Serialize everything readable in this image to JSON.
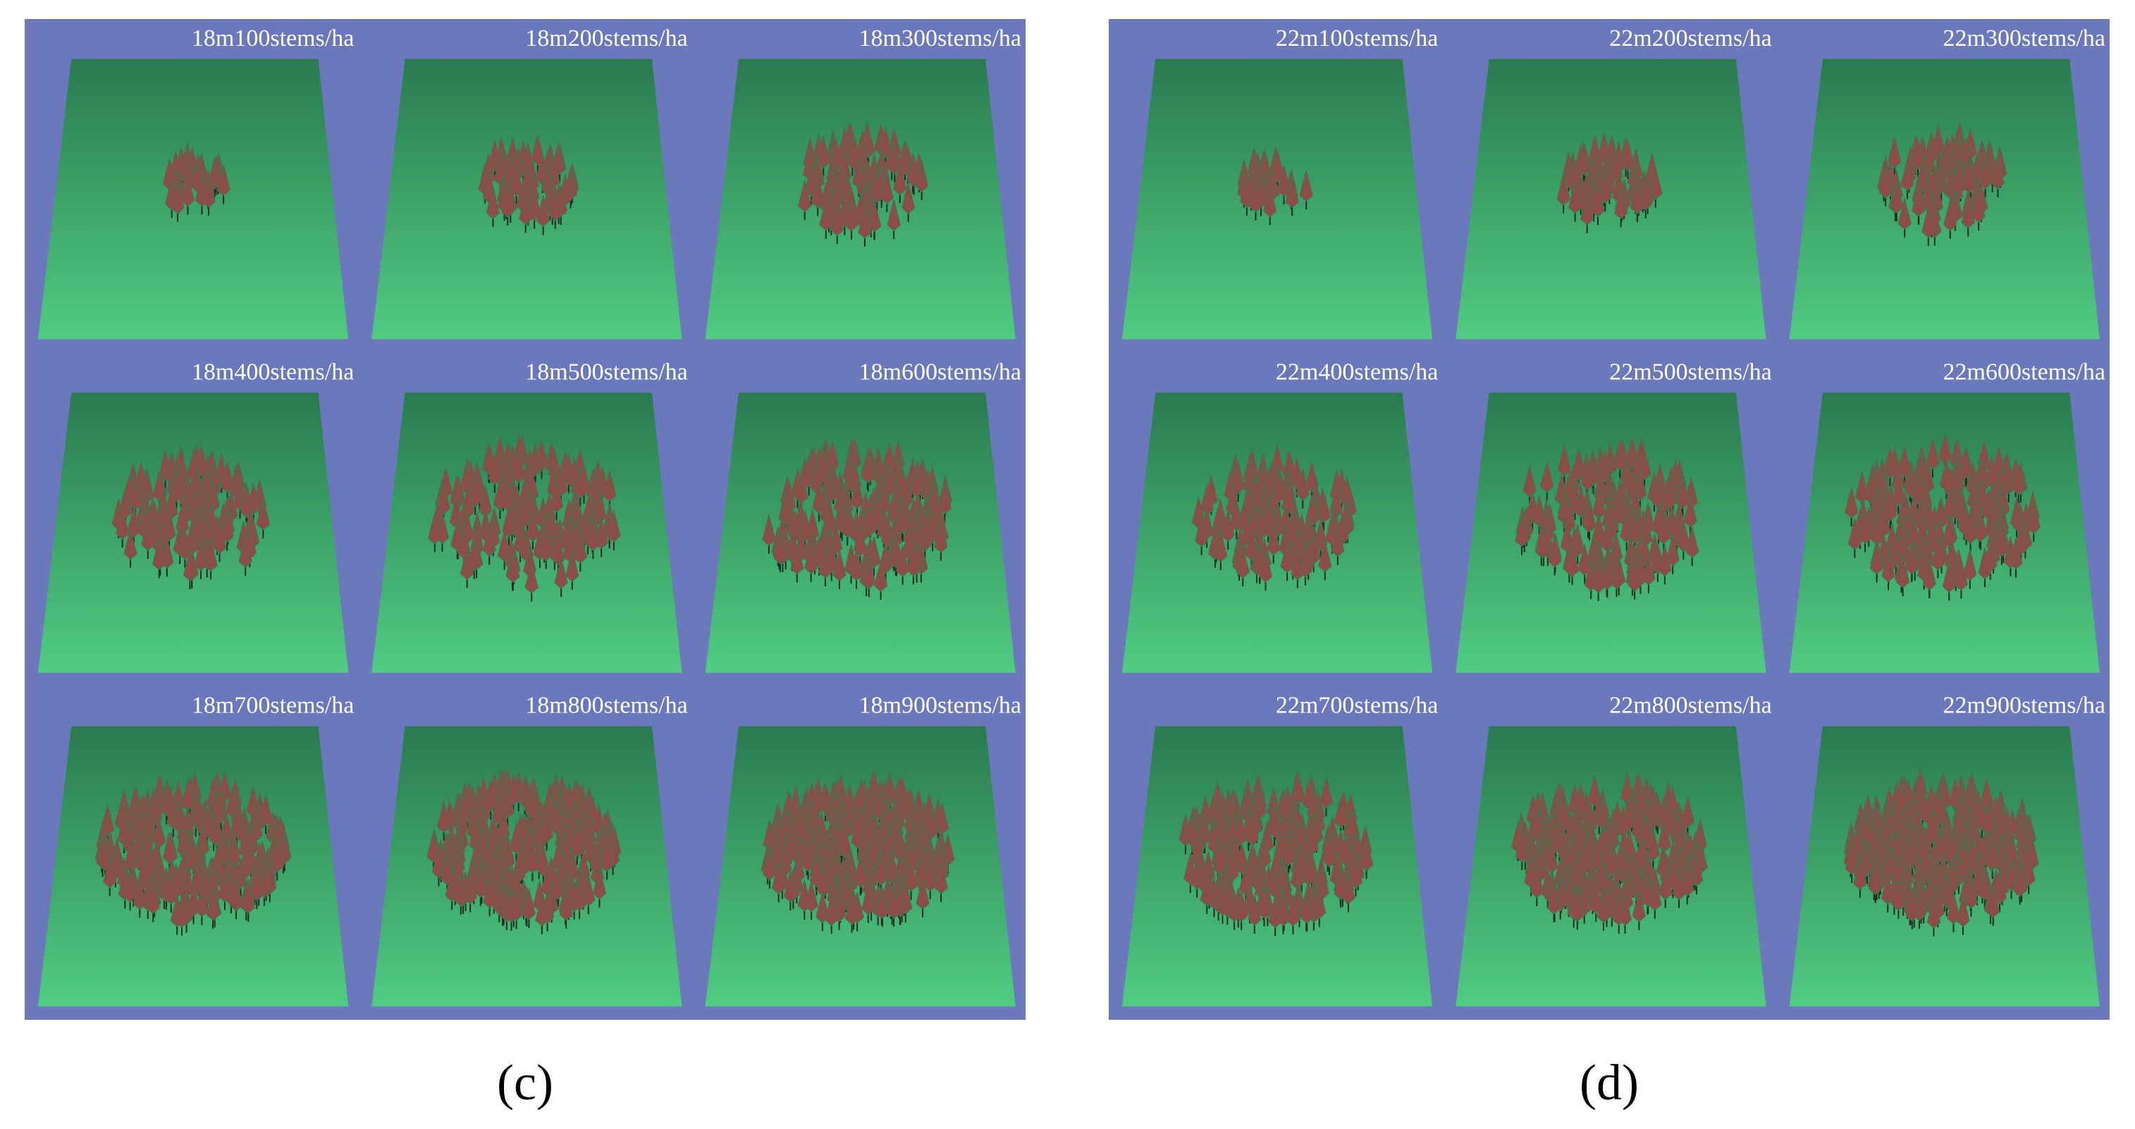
{
  "panels": [
    {
      "caption": "(c)",
      "tiles": [
        "18m100stems/ha",
        "18m200stems/ha",
        "18m300stems/ha",
        "18m400stems/ha",
        "18m500stems/ha",
        "18m600stems/ha",
        "18m700stems/ha",
        "18m800stems/ha",
        "18m900stems/ha"
      ]
    },
    {
      "caption": "(d)",
      "tiles": [
        "22m100stems/ha",
        "22m200stems/ha",
        "22m300stems/ha",
        "22m400stems/ha",
        "22m500stems/ha",
        "22m600stems/ha",
        "22m700stems/ha",
        "22m800stems/ha",
        "22m900stems/ha"
      ]
    }
  ]
}
